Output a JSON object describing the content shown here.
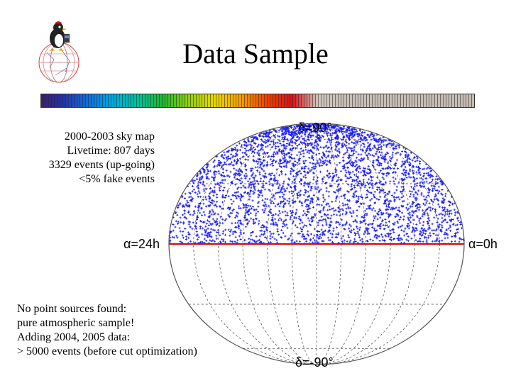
{
  "slide": {
    "title": "Data Sample",
    "logo_icon": "amanda-penguin-globe-logo"
  },
  "colors": {
    "event_points": "#1a1aff",
    "equator_line": "#dd0000",
    "grid_lines": "#444444"
  },
  "info_block": {
    "lines": [
      "2000-2003 sky map",
      "Livetime: 807 days",
      "3329 events (up-going)",
      "<5% fake events"
    ]
  },
  "conclusion_block": {
    "lines": [
      "No point sources found:",
      "pure atmospheric sample!",
      "Adding 2004, 2005 data:",
      "> 5000 events (before cut optimization)"
    ]
  },
  "chart_data": {
    "type": "scatter",
    "projection": "hammer-aitoff",
    "coordinates": "equatorial",
    "labels": {
      "north_pole": "δ=90°",
      "south_pole": "δ=-90°",
      "left_edge": "α=24h",
      "right_edge": "α=0h"
    },
    "dec_range": [
      0,
      90
    ],
    "ra_range": [
      0,
      24
    ],
    "event_count": 3329,
    "grid": true,
    "equator_highlight": true
  }
}
